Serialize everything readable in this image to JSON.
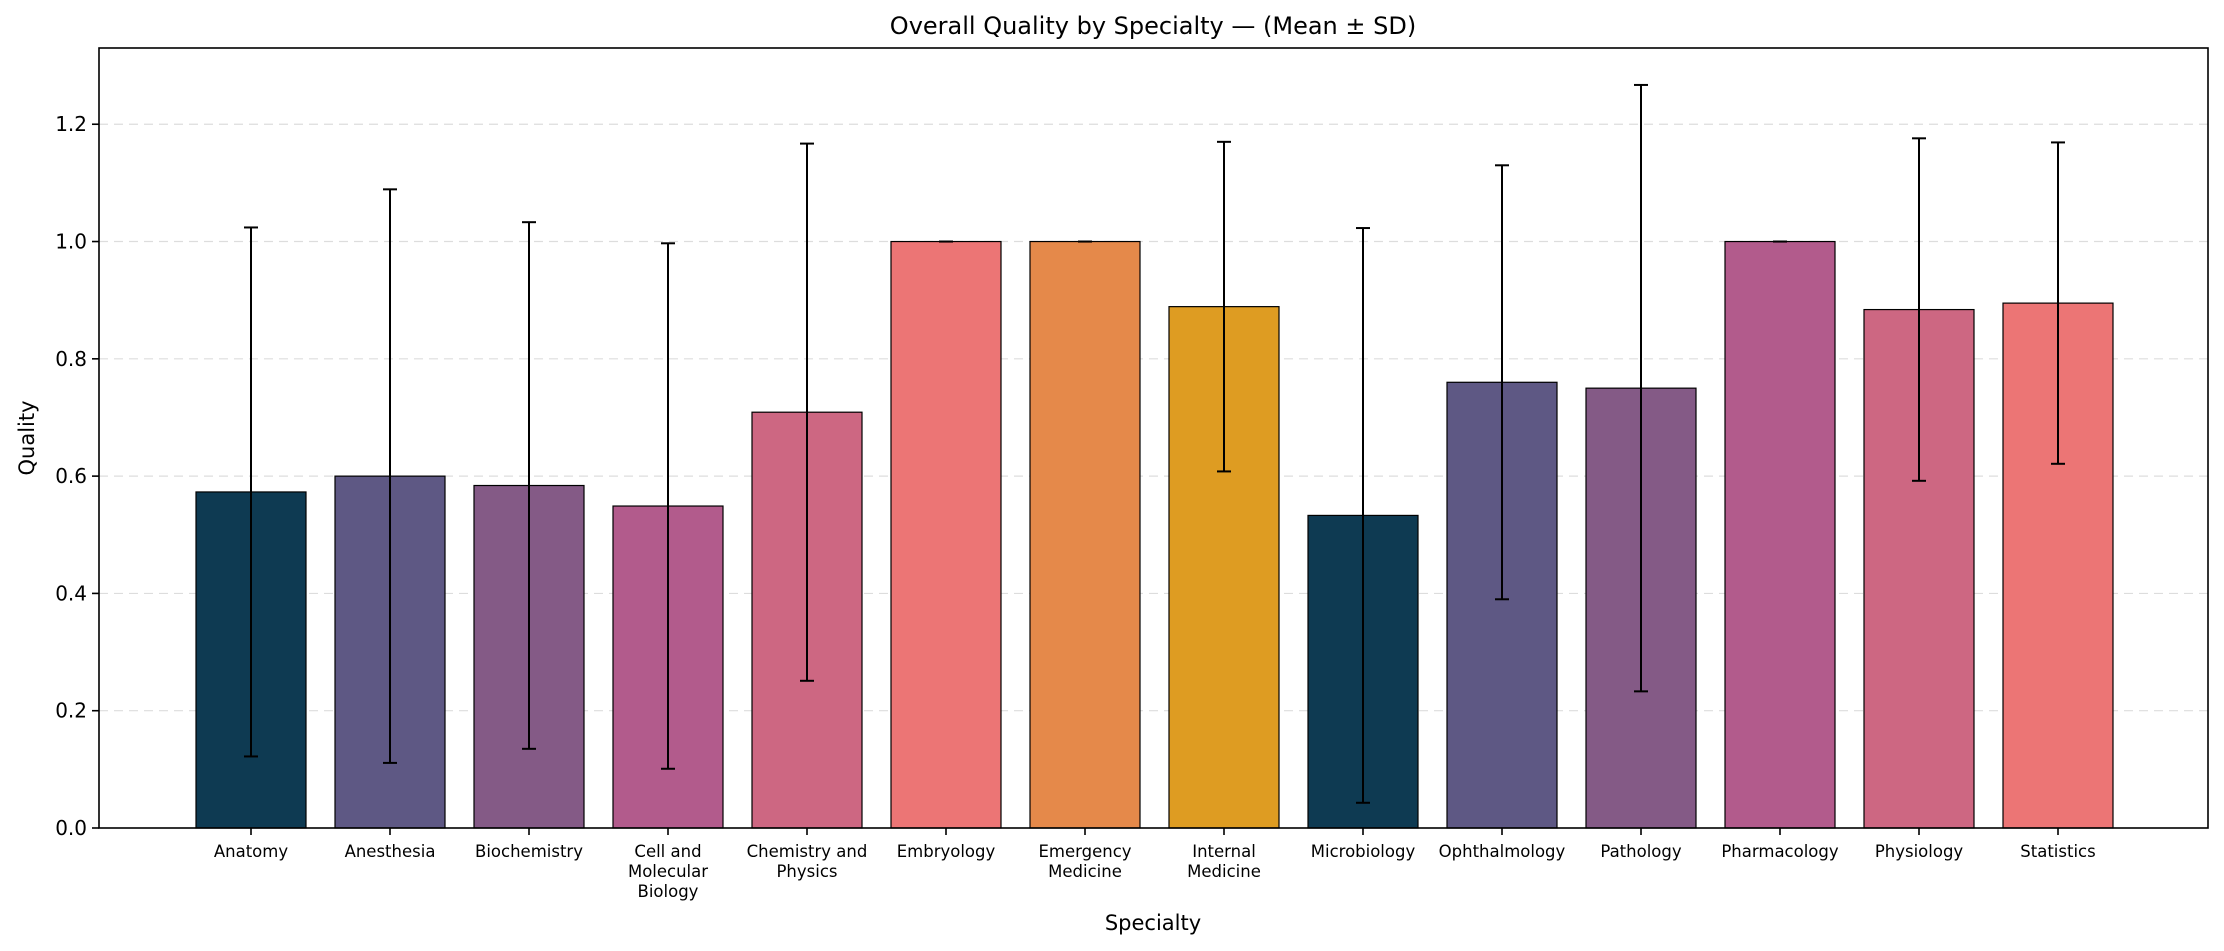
{
  "chart_data": {
    "type": "bar",
    "title": "Overall Quality by Specialty — (Mean ± SD)",
    "xlabel": "Specialty",
    "ylabel": "Quality",
    "ylim": [
      0,
      1.33
    ],
    "yticks": [
      "0.0",
      "0.2",
      "0.4",
      "0.6",
      "0.8",
      "1.0",
      "1.2"
    ],
    "grid": "horizontal dashed",
    "categories": [
      "Anatomy",
      "Anesthesia",
      "Biochemistry",
      "Cell and Molecular Biology",
      "Chemistry and Physics",
      "Embryology",
      "Emergency Medicine",
      "Internal Medicine",
      "Microbiology",
      "Ophthalmology",
      "Pathology",
      "Pharmacology",
      "Physiology",
      "Statistics"
    ],
    "category_lines": [
      [
        "Anatomy"
      ],
      [
        "Anesthesia"
      ],
      [
        "Biochemistry"
      ],
      [
        "Cell and",
        "Molecular",
        "Biology"
      ],
      [
        "Chemistry and",
        "Physics"
      ],
      [
        "Embryology"
      ],
      [
        "Emergency",
        "Medicine"
      ],
      [
        "Internal",
        "Medicine"
      ],
      [
        "Microbiology"
      ],
      [
        "Ophthalmology"
      ],
      [
        "Pathology"
      ],
      [
        "Pharmacology"
      ],
      [
        "Physiology"
      ],
      [
        "Statistics"
      ]
    ],
    "values": [
      0.573,
      0.6,
      0.584,
      0.549,
      0.709,
      1.0,
      1.0,
      0.889,
      0.533,
      0.76,
      0.75,
      1.0,
      0.884,
      0.895
    ],
    "sd": [
      0.451,
      0.489,
      0.449,
      0.448,
      0.458,
      0.0,
      0.0,
      0.281,
      0.49,
      0.37,
      0.517,
      0.0,
      0.292,
      0.274
    ],
    "colors": [
      "#0e3a52",
      "#5e5884",
      "#845a86",
      "#b25b8c",
      "#cd6782",
      "#ec7575",
      "#e5894a",
      "#de9c22",
      "#0e3a52",
      "#5e5884",
      "#845a86",
      "#b25b8c",
      "#cd6782",
      "#ec7575"
    ],
    "bar_edge_color": "#000000"
  }
}
